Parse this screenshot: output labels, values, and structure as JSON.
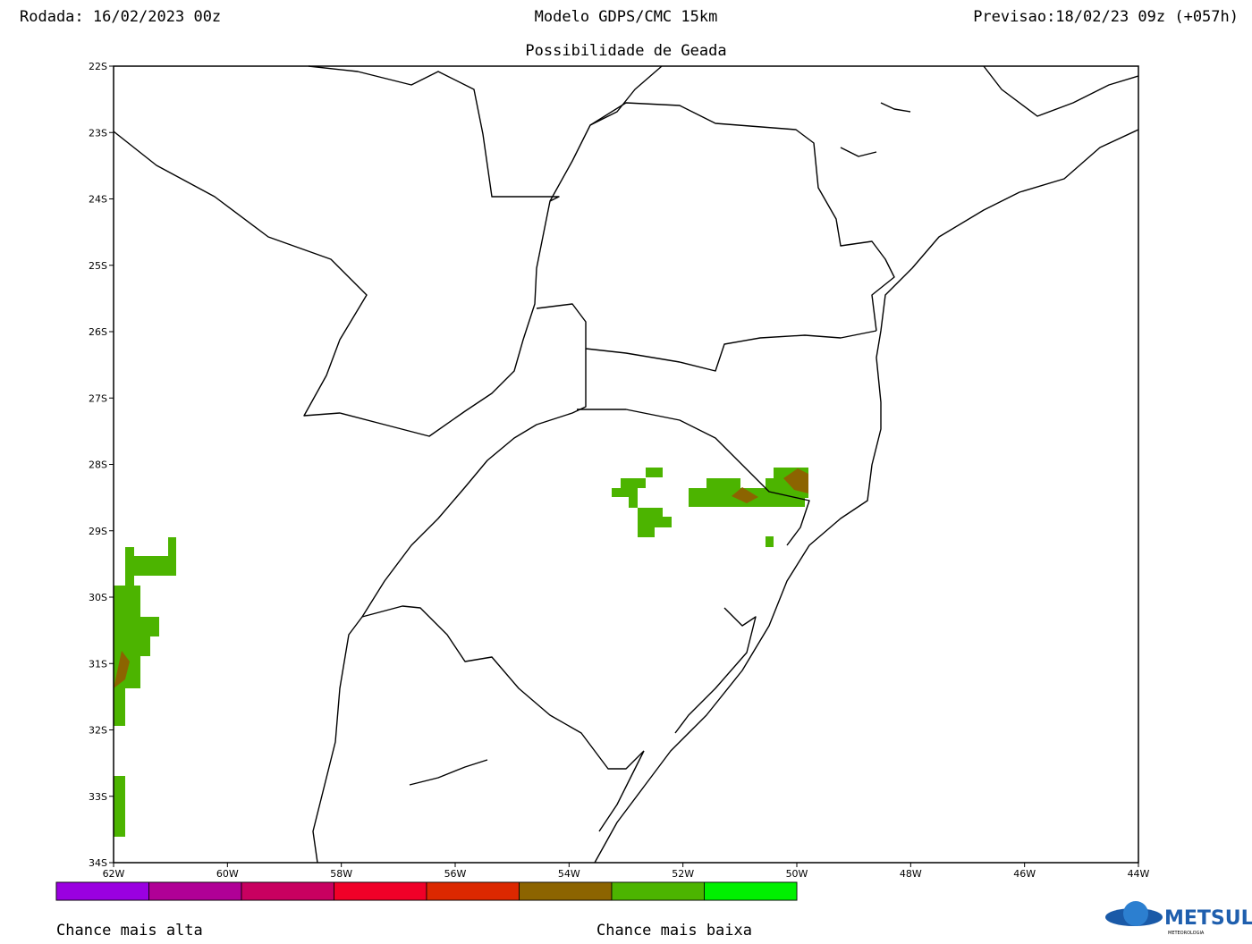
{
  "header": {
    "run": "Rodada: 16/02/2023 00z",
    "model": "Modelo GDPS/CMC 15km",
    "forecast": "Previsao:18/02/23 09z (+057h)",
    "subtitle": "Possibilidade de Geada"
  },
  "map": {
    "lat_labels": [
      "22S",
      "23S",
      "24S",
      "25S",
      "26S",
      "27S",
      "28S",
      "29S",
      "30S",
      "31S",
      "32S",
      "33S",
      "34S"
    ],
    "lon_labels": [
      "62W",
      "60W",
      "58W",
      "56W",
      "54W",
      "52W",
      "50W",
      "48W",
      "46W",
      "44W"
    ]
  },
  "legend": {
    "colors": [
      "#9a00e0",
      "#b00096",
      "#c80060",
      "#f00028",
      "#dc2800",
      "#8c6400",
      "#4cb400",
      "#00f000"
    ],
    "high_label": "Chance mais alta",
    "low_label": "Chance mais baixa"
  },
  "logo": {
    "name": "METSUL",
    "tagline": "METEOROLOGIA"
  }
}
